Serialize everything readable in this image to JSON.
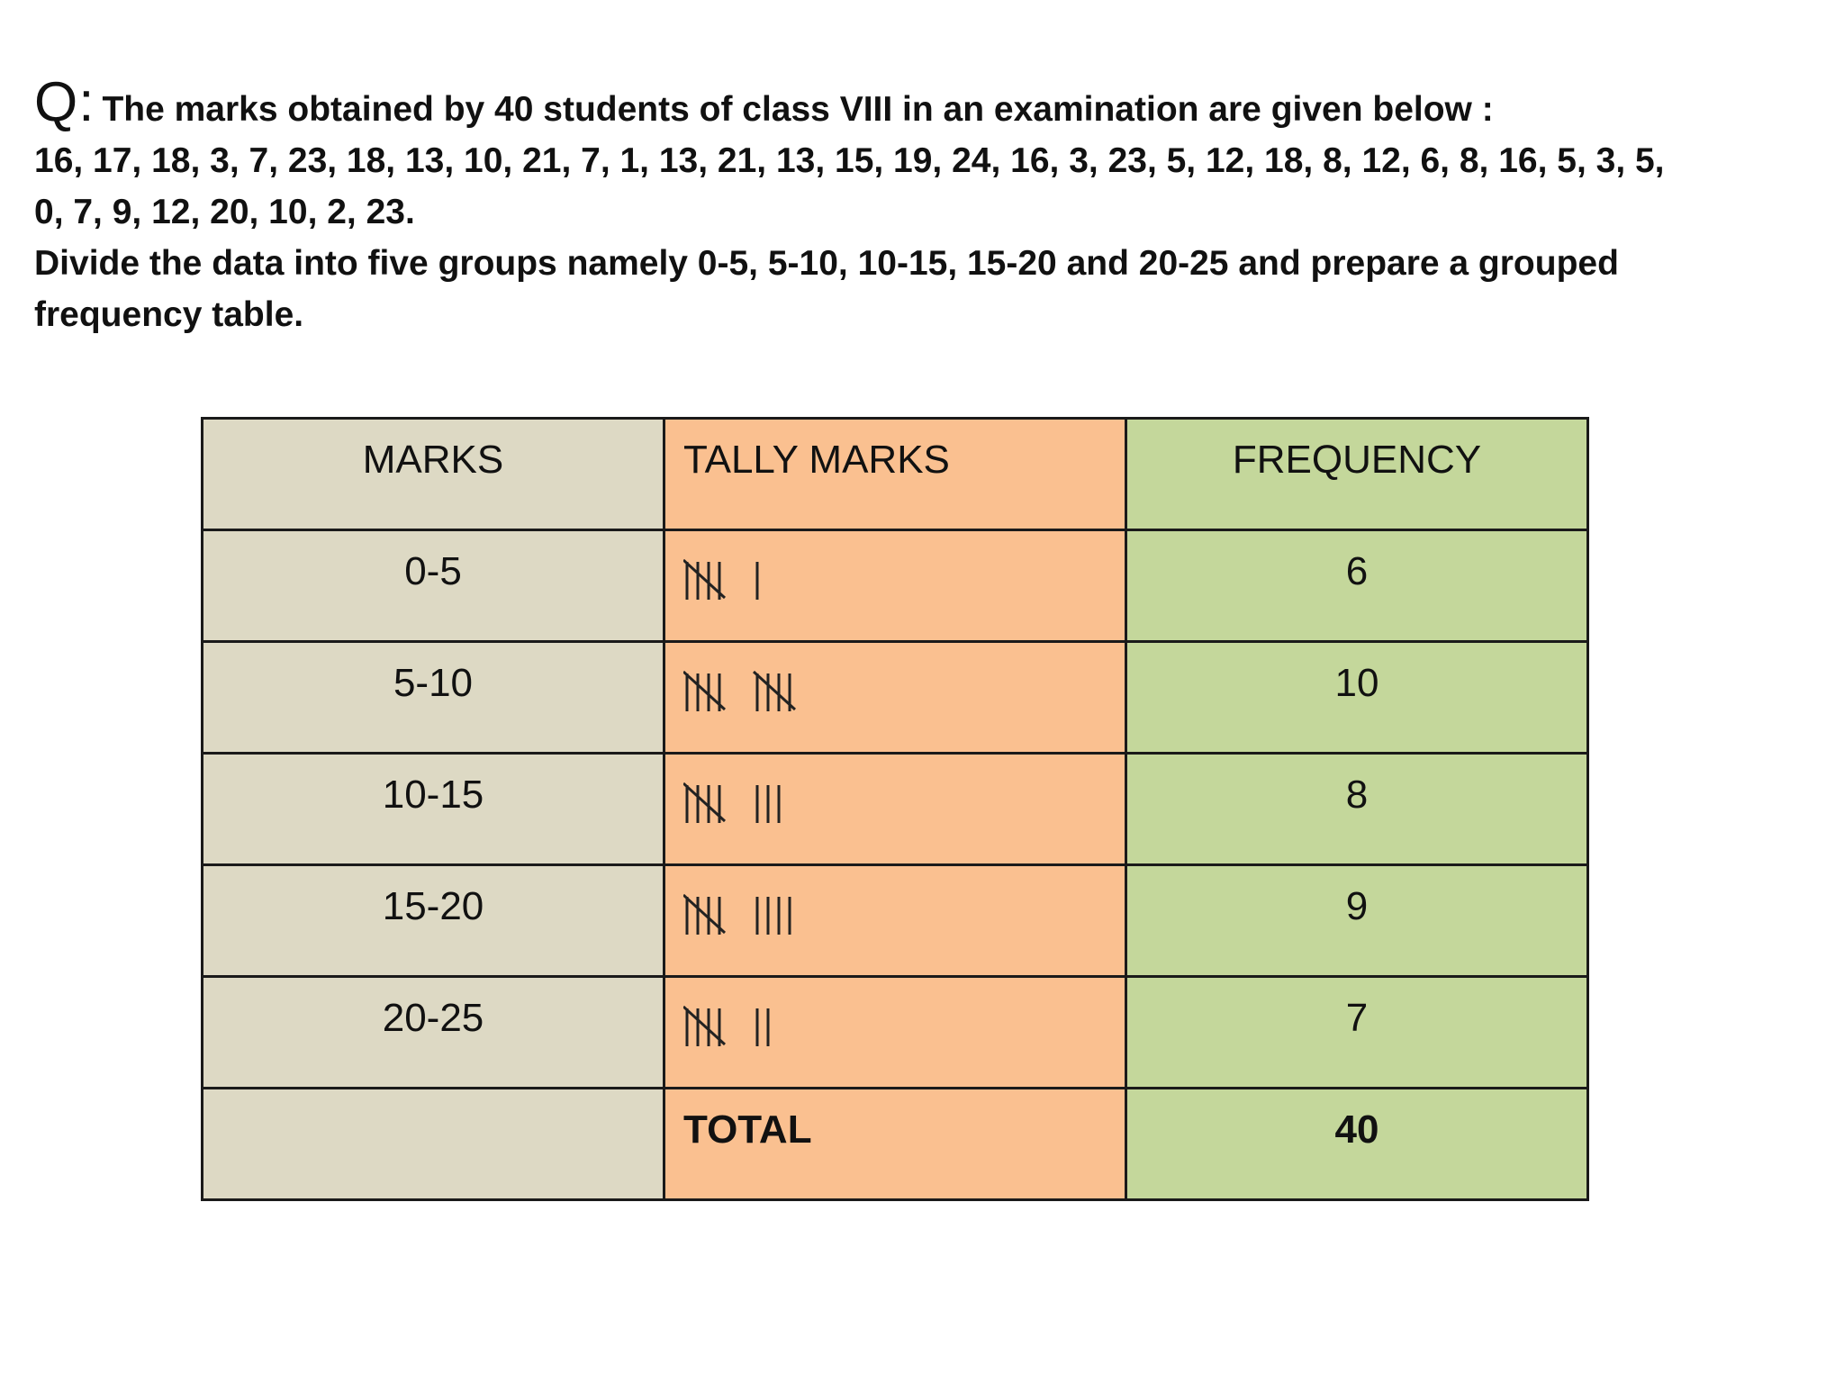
{
  "question": {
    "label": "Q:",
    "line1": "The marks obtained by 40 students of class VIII in an examination are given below :",
    "line2": "16, 17, 18, 3, 7, 23, 18, 13, 10, 21, 7, 1, 13, 21, 13, 15, 19, 24, 16, 3, 23, 5, 12, 18, 8, 12, 6, 8, 16, 5, 3, 5,",
    "line3": "0, 7, 9, 12, 20, 10, 2, 23.",
    "line4": "Divide the data into five groups namely 0-5, 5-10, 10-15, 15-20 and 20-25 and prepare a grouped",
    "line5": "frequency table."
  },
  "table": {
    "headers": {
      "marks": "MARKS",
      "tally": "TALLY MARKS",
      "frequency": "FREQUENCY"
    },
    "rows": [
      {
        "marks": "0-5",
        "tally_count": 6,
        "frequency": "6"
      },
      {
        "marks": "5-10",
        "tally_count": 10,
        "frequency": "10"
      },
      {
        "marks": "10-15",
        "tally_count": 8,
        "frequency": "8"
      },
      {
        "marks": "15-20",
        "tally_count": 9,
        "frequency": "9"
      },
      {
        "marks": "20-25",
        "tally_count": 7,
        "frequency": "7"
      }
    ],
    "total": {
      "marks": "",
      "label": "TOTAL",
      "value": "40"
    },
    "colors": {
      "marks_column": "#ddd9c4",
      "tally_column": "#fac090",
      "frequency_column": "#c4d79b",
      "border": "#1a1a1a"
    }
  }
}
